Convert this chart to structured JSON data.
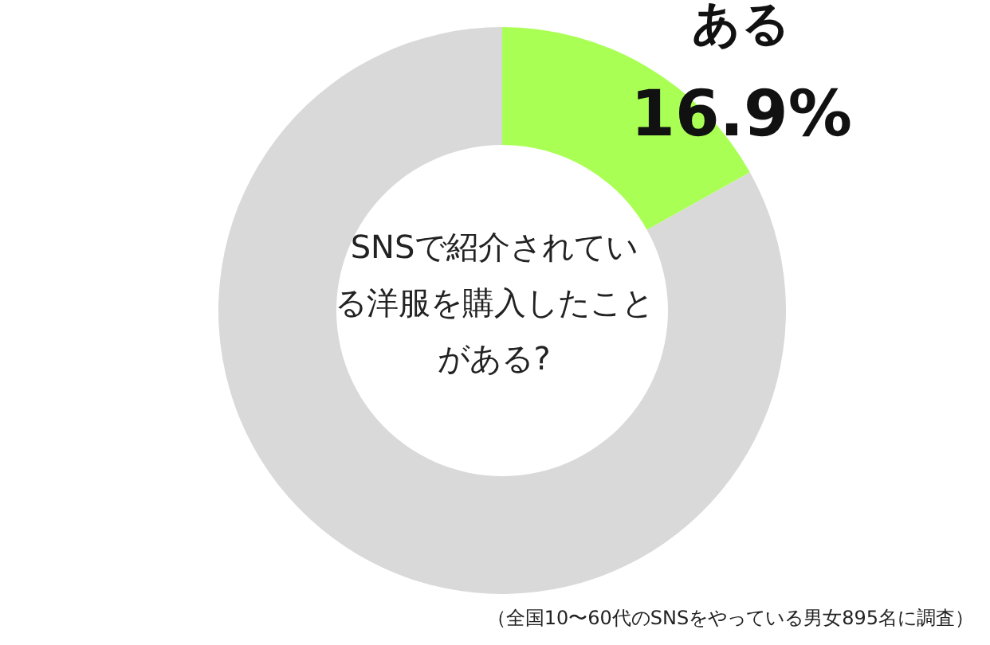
{
  "chart_data": {
    "type": "donut",
    "title": "SNSで紹介されている洋服を購入したことがある?",
    "categories": [
      "ある",
      null
    ],
    "values": [
      16.9,
      83.1
    ],
    "value_labels": [
      "16.9%",
      null
    ],
    "colors": [
      "#aaff55",
      "#d9d9d9"
    ],
    "annotations": [
      "（全国10〜60代のSNSをやっている男女895名に調査）"
    ]
  }
}
